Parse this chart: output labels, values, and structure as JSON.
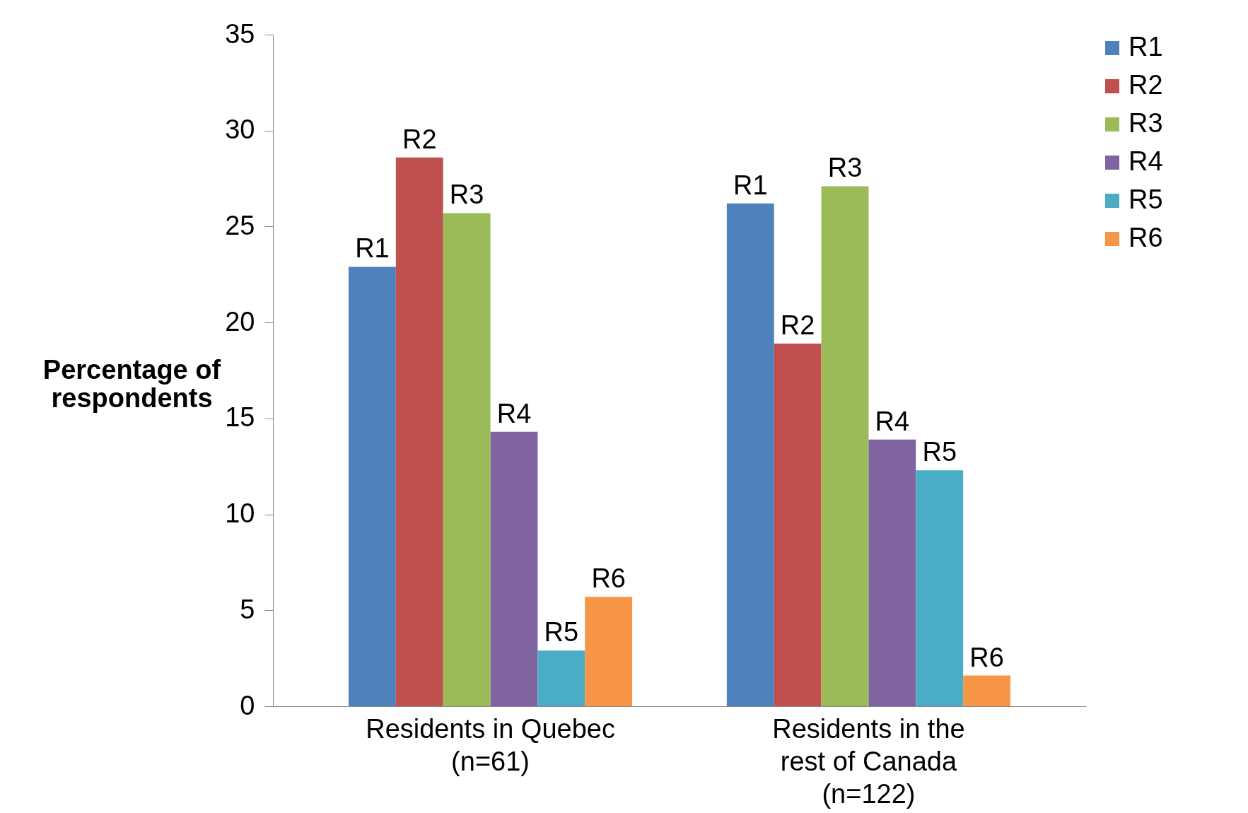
{
  "chart_data": {
    "type": "bar",
    "ylabel": "Percentage of respondents",
    "categories": [
      "Residents in Quebec (n=61)",
      "Residents in the rest of Canada (n=122)"
    ],
    "series": [
      {
        "name": "R1",
        "color": "#4f81bd",
        "values": [
          22.9,
          26.2
        ]
      },
      {
        "name": "R2",
        "color": "#c0504d",
        "values": [
          28.6,
          18.9
        ]
      },
      {
        "name": "R3",
        "color": "#9bbb59",
        "values": [
          25.7,
          27.1
        ]
      },
      {
        "name": "R4",
        "color": "#8064a2",
        "values": [
          14.3,
          13.9
        ]
      },
      {
        "name": "R5",
        "color": "#4bacc6",
        "values": [
          2.9,
          12.3
        ]
      },
      {
        "name": "R6",
        "color": "#f79646",
        "values": [
          5.7,
          1.6
        ]
      }
    ],
    "ylim": [
      0,
      35
    ],
    "yticks": [
      0,
      5,
      10,
      15,
      20,
      25,
      30,
      35
    ],
    "grid": false,
    "legend": "right"
  }
}
